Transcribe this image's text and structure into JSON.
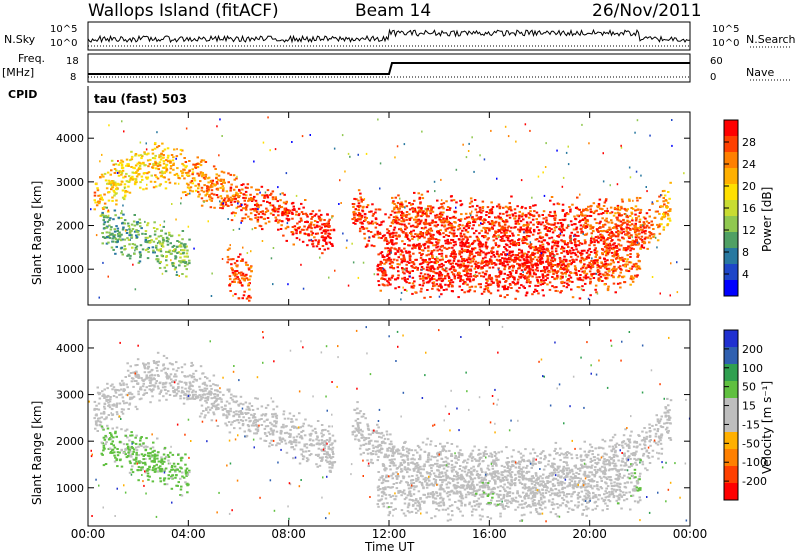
{
  "header": {
    "station": "Wallops Island (fitACF)",
    "beam": "Beam 14",
    "date": "26/Nov/2011"
  },
  "strips": {
    "nsky_label": "N.Sky",
    "nsky_ticks": [
      "10^5",
      "10^0"
    ],
    "nsearch_label": "N.Search",
    "nsearch_ticks": [
      "10^5",
      "10^0"
    ],
    "freq_label": "Freq.",
    "freq_unit": "[MHz]",
    "freq_ticks": [
      "18",
      "8"
    ],
    "nave_label": "Nave",
    "nave_ticks": [
      "60",
      "0"
    ],
    "cpid_label": "CPID",
    "cpid_value": "tau (fast) 503"
  },
  "axes": {
    "ylabel": "Slant Range [km]",
    "xlabel": "Time UT",
    "yticks": [
      "4000",
      "3000",
      "2000",
      "1000"
    ],
    "xticks": [
      "00:00",
      "04:00",
      "08:00",
      "12:00",
      "16:00",
      "20:00",
      "00:00"
    ]
  },
  "colorbars": {
    "power": {
      "label": "Power [dB]",
      "ticks": [
        "28",
        "24",
        "20",
        "16",
        "12",
        "8",
        "4"
      ],
      "colors": [
        "#ff0000",
        "#ff4000",
        "#ff8000",
        "#ffb000",
        "#ffe000",
        "#c8dc32",
        "#90c850",
        "#50a064",
        "#2878a0",
        "#1e46c8",
        "#0000ff"
      ]
    },
    "velocity": {
      "label": "Velocity [m s⁻¹]",
      "ticks": [
        "200",
        "100",
        "50",
        "15",
        "-15",
        "-50",
        "-100",
        "-200"
      ],
      "colors": [
        "#2030d0",
        "#3060b0",
        "#30a050",
        "#60c040",
        "#bebebe",
        "#bebebe",
        "#ffb000",
        "#ff8000",
        "#ff4000",
        "#ff0000"
      ]
    }
  },
  "chart_data": [
    {
      "type": "heatmap",
      "title": "Power [dB]",
      "xlabel": "Time UT",
      "ylabel": "Slant Range [km]",
      "xlim": [
        0,
        24
      ],
      "ylim": [
        180,
        4600
      ],
      "value_range": [
        0,
        30
      ],
      "series": [
        {
          "name": "",
          "x": [
            0.2,
            1,
            2,
            3,
            4,
            5,
            6,
            7,
            8,
            9,
            9.8
          ],
          "y": [
            2600,
            3000,
            3300,
            3400,
            3200,
            2900,
            2600,
            2400,
            2200,
            2000,
            1700
          ],
          "value": [
            22,
            18,
            18,
            20,
            22,
            24,
            25,
            26,
            27,
            28,
            28
          ]
        },
        {
          "name": "",
          "x": [
            0.5,
            2,
            3,
            4
          ],
          "y": [
            2000,
            1700,
            1500,
            1350
          ],
          "value": [
            10,
            10,
            12,
            12
          ]
        },
        {
          "name": "",
          "x": [
            5.5,
            6,
            6.5
          ],
          "y": [
            1100,
            900,
            800
          ],
          "value": [
            26,
            26,
            24
          ]
        },
        {
          "name": "",
          "x": [
            10.5,
            11,
            12,
            14,
            16,
            18,
            20,
            22,
            23.2
          ],
          "y": [
            2500,
            2100,
            1700,
            1500,
            1400,
            1400,
            1500,
            1800,
            2500
          ],
          "value": [
            26,
            27,
            28,
            28,
            28,
            28,
            28,
            27,
            20
          ]
        },
        {
          "name": "",
          "x": [
            11.5,
            14,
            16,
            18,
            20,
            22
          ],
          "y": [
            1000,
            900,
            900,
            900,
            950,
            1100
          ],
          "value": [
            28,
            28,
            28,
            28,
            26,
            24
          ]
        },
        {
          "name": "",
          "x": [
            12,
            14,
            16,
            18,
            20,
            22
          ],
          "y": [
            2300,
            2200,
            2100,
            2100,
            2150,
            2200
          ],
          "value": [
            26,
            26,
            27,
            27,
            26,
            24
          ]
        }
      ]
    },
    {
      "type": "heatmap",
      "title": "Velocity [m s⁻¹]",
      "xlabel": "Time UT",
      "ylabel": "Slant Range [km]",
      "xlim": [
        0,
        24
      ],
      "ylim": [
        180,
        4600
      ],
      "value_range": [
        -200,
        200
      ],
      "series": [
        {
          "name": "",
          "x": [
            0.2,
            1,
            2,
            3,
            4,
            5,
            6,
            7,
            8,
            9,
            9.8
          ],
          "y": [
            2600,
            3000,
            3300,
            3400,
            3200,
            2900,
            2600,
            2400,
            2200,
            2000,
            1700
          ],
          "value": [
            0,
            0,
            0,
            0,
            0,
            0,
            0,
            0,
            0,
            0,
            0
          ]
        },
        {
          "name": "",
          "x": [
            0.5,
            2,
            3,
            4
          ],
          "y": [
            2000,
            1700,
            1500,
            1350
          ],
          "value": [
            50,
            50,
            50,
            50
          ]
        },
        {
          "name": "",
          "x": [
            10.5,
            11,
            12,
            14,
            16,
            18,
            20,
            22,
            23.2
          ],
          "y": [
            2500,
            2100,
            1700,
            1500,
            1400,
            1400,
            1500,
            1800,
            2500
          ],
          "value": [
            0,
            0,
            0,
            0,
            0,
            0,
            0,
            0,
            0
          ]
        },
        {
          "name": "",
          "x": [
            11.5,
            14,
            16,
            18,
            20,
            22
          ],
          "y": [
            1000,
            900,
            900,
            900,
            950,
            1100
          ],
          "value": [
            0,
            0,
            30,
            0,
            0,
            40
          ]
        }
      ]
    }
  ]
}
